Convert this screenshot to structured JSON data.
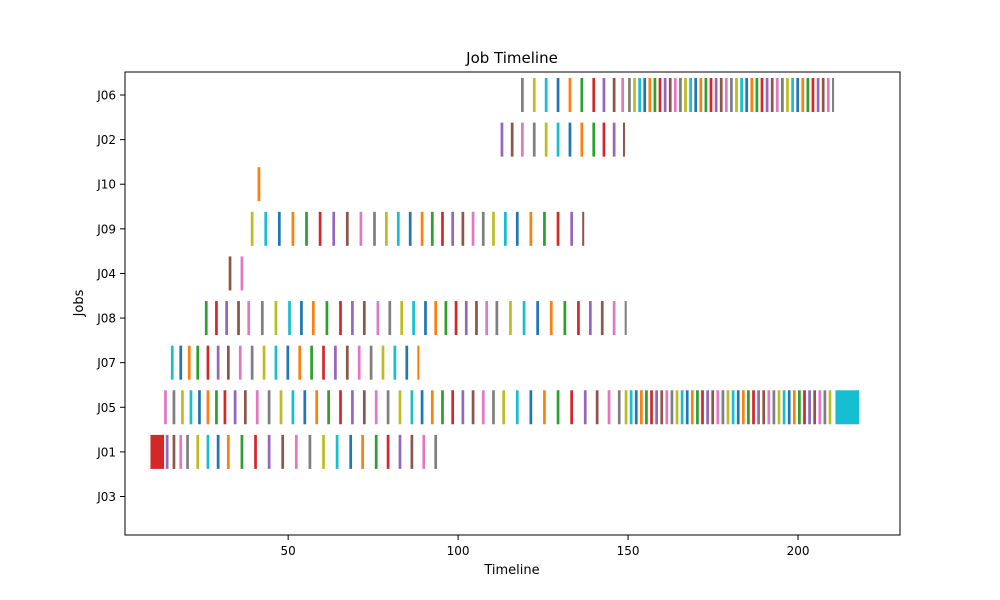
{
  "chart_data": {
    "type": "timeline",
    "title": "Job Timeline",
    "xlabel": "Timeline",
    "ylabel": "Jobs",
    "xlim": [
      2,
      230
    ],
    "xticks": [
      50,
      100,
      150,
      200
    ],
    "jobs": [
      "J03",
      "J01",
      "J05",
      "J07",
      "J08",
      "J04",
      "J09",
      "J10",
      "J02",
      "J06"
    ],
    "grid": false,
    "legend": "none",
    "palette": [
      "#1f77b4",
      "#ff7f0e",
      "#2ca02c",
      "#d62728",
      "#9467bd",
      "#8c564b",
      "#e377c2",
      "#7f7f7f",
      "#bcbd22",
      "#17becf"
    ],
    "segments": {
      "J03": [],
      "J01": [
        [
          9.5,
          4
        ],
        [
          14,
          0.8
        ],
        [
          16,
          0.8
        ],
        [
          18,
          0.8
        ],
        [
          20,
          0.8
        ],
        [
          23,
          0.8
        ],
        [
          26,
          0.8
        ],
        [
          29,
          0.8
        ],
        [
          32,
          0.8
        ],
        [
          36,
          0.8
        ],
        [
          40,
          0.8
        ],
        [
          44,
          0.8
        ],
        [
          48,
          0.8
        ],
        [
          52,
          0.8
        ],
        [
          56,
          0.8
        ],
        [
          60,
          0.8
        ],
        [
          64,
          0.8
        ],
        [
          68,
          0.8
        ],
        [
          71.5,
          0.8
        ],
        [
          75.5,
          0.8
        ],
        [
          79,
          0.8
        ],
        [
          82.5,
          0.8
        ],
        [
          86,
          0.8
        ],
        [
          89.5,
          0.8
        ],
        [
          93,
          0.8
        ]
      ],
      "J05": [
        [
          13.5,
          0.8
        ],
        [
          16,
          0.8
        ],
        [
          18.5,
          0.8
        ],
        [
          21,
          0.8
        ],
        [
          23.5,
          0.8
        ],
        [
          26,
          0.8
        ],
        [
          28.5,
          0.8
        ],
        [
          31,
          0.8
        ],
        [
          34,
          0.8
        ],
        [
          37,
          0.8
        ],
        [
          40.5,
          0.8
        ],
        [
          44,
          0.8
        ],
        [
          47.5,
          0.8
        ],
        [
          51,
          0.8
        ],
        [
          54.5,
          0.8
        ],
        [
          58,
          0.8
        ],
        [
          61.5,
          0.8
        ],
        [
          65,
          0.8
        ],
        [
          68.5,
          0.8
        ],
        [
          72,
          0.8
        ],
        [
          75.5,
          0.8
        ],
        [
          79,
          0.8
        ],
        [
          82.5,
          0.8
        ],
        [
          86,
          0.8
        ],
        [
          89,
          0.8
        ],
        [
          92,
          0.8
        ],
        [
          95,
          0.8
        ],
        [
          98,
          0.8
        ],
        [
          101,
          0.8
        ],
        [
          104,
          0.8
        ],
        [
          107,
          0.8
        ],
        [
          110,
          0.8
        ],
        [
          113,
          0.8
        ],
        [
          117,
          0.8
        ],
        [
          121,
          0.8
        ],
        [
          125,
          0.8
        ],
        [
          129,
          0.8
        ],
        [
          133,
          0.8
        ],
        [
          137,
          0.8
        ],
        [
          140.5,
          0.8
        ],
        [
          144,
          0.8
        ],
        [
          147,
          0.8
        ],
        [
          149,
          0.8
        ],
        [
          150.5,
          0.8
        ],
        [
          152,
          0.8
        ],
        [
          153.5,
          0.8
        ],
        [
          155,
          0.8
        ],
        [
          156.5,
          0.8
        ],
        [
          158,
          0.8
        ],
        [
          159.5,
          0.8
        ],
        [
          161,
          0.8
        ],
        [
          162.5,
          0.8
        ],
        [
          164,
          0.8
        ],
        [
          165.5,
          0.8
        ],
        [
          167,
          0.8
        ],
        [
          168.5,
          0.8
        ],
        [
          170,
          0.8
        ],
        [
          171.5,
          0.8
        ],
        [
          173,
          0.8
        ],
        [
          174.5,
          0.8
        ],
        [
          176,
          0.8
        ],
        [
          177.5,
          0.8
        ],
        [
          179,
          0.8
        ],
        [
          180.5,
          0.8
        ],
        [
          182,
          0.8
        ],
        [
          183.5,
          0.8
        ],
        [
          185,
          0.8
        ],
        [
          186.5,
          0.8
        ],
        [
          188,
          0.8
        ],
        [
          189.5,
          0.8
        ],
        [
          191,
          0.8
        ],
        [
          192.5,
          0.8
        ],
        [
          194,
          0.8
        ],
        [
          195.5,
          0.8
        ],
        [
          197,
          0.8
        ],
        [
          198.5,
          0.8
        ],
        [
          200,
          0.8
        ],
        [
          201.5,
          0.8
        ],
        [
          203,
          0.8
        ],
        [
          204.5,
          0.8
        ],
        [
          206,
          0.8
        ],
        [
          207.5,
          0.8
        ],
        [
          209,
          0.8
        ],
        [
          211,
          7
        ]
      ],
      "J07": [
        [
          15.5,
          0.8
        ],
        [
          18,
          0.8
        ],
        [
          20.5,
          0.8
        ],
        [
          23,
          0.8
        ],
        [
          26,
          0.8
        ],
        [
          29,
          0.8
        ],
        [
          32,
          0.8
        ],
        [
          35.5,
          0.8
        ],
        [
          39,
          0.8
        ],
        [
          42.5,
          0.8
        ],
        [
          46,
          0.8
        ],
        [
          49.5,
          0.8
        ],
        [
          53,
          0.8
        ],
        [
          56.5,
          0.8
        ],
        [
          60,
          0.8
        ],
        [
          63.5,
          0.8
        ],
        [
          67,
          0.8
        ],
        [
          70.5,
          0.8
        ],
        [
          74,
          0.8
        ],
        [
          77.5,
          0.8
        ],
        [
          81,
          0.8
        ],
        [
          84.5,
          0.8
        ],
        [
          88,
          0.6
        ]
      ],
      "J08": [
        [
          25.5,
          0.8
        ],
        [
          28.5,
          0.8
        ],
        [
          31.5,
          0.8
        ],
        [
          35,
          0.8
        ],
        [
          38,
          0.8
        ],
        [
          42,
          0.8
        ],
        [
          46,
          0.8
        ],
        [
          50,
          0.8
        ],
        [
          53.5,
          0.8
        ],
        [
          57,
          0.8
        ],
        [
          61,
          0.8
        ],
        [
          65,
          0.8
        ],
        [
          68.5,
          0.8
        ],
        [
          72,
          0.8
        ],
        [
          76,
          0.8
        ],
        [
          79.5,
          0.8
        ],
        [
          83,
          0.8
        ],
        [
          86.5,
          0.8
        ],
        [
          90,
          0.8
        ],
        [
          93,
          0.8
        ],
        [
          96,
          0.8
        ],
        [
          99,
          0.8
        ],
        [
          102,
          0.8
        ],
        [
          105,
          0.8
        ],
        [
          108,
          0.8
        ],
        [
          111,
          0.8
        ],
        [
          115,
          0.8
        ],
        [
          119,
          0.8
        ],
        [
          123,
          0.8
        ],
        [
          127,
          0.8
        ],
        [
          131,
          0.8
        ],
        [
          135,
          0.8
        ],
        [
          138.5,
          0.8
        ],
        [
          142,
          0.8
        ],
        [
          145.5,
          0.8
        ],
        [
          149,
          0.6
        ]
      ],
      "J04": [
        [
          32.5,
          0.8
        ],
        [
          36,
          0.8
        ]
      ],
      "J09": [
        [
          39,
          0.8
        ],
        [
          43,
          0.8
        ],
        [
          47,
          0.8
        ],
        [
          51,
          0.8
        ],
        [
          55,
          0.8
        ],
        [
          59,
          0.8
        ],
        [
          63,
          0.8
        ],
        [
          67,
          0.8
        ],
        [
          71,
          0.8
        ],
        [
          75,
          0.8
        ],
        [
          78.5,
          0.8
        ],
        [
          82,
          0.8
        ],
        [
          85.5,
          0.8
        ],
        [
          89,
          0.8
        ],
        [
          92,
          0.8
        ],
        [
          95,
          0.8
        ],
        [
          98,
          0.8
        ],
        [
          101,
          0.8
        ],
        [
          104,
          0.8
        ],
        [
          107,
          0.8
        ],
        [
          110,
          0.8
        ],
        [
          113.5,
          0.8
        ],
        [
          117,
          0.8
        ],
        [
          121,
          0.8
        ],
        [
          125,
          0.8
        ],
        [
          129,
          0.8
        ],
        [
          133,
          0.8
        ],
        [
          136.5,
          0.6
        ]
      ],
      "J10": [
        [
          41,
          0.8
        ]
      ],
      "J02": [
        [
          112.5,
          0.8
        ],
        [
          115.5,
          0.8
        ],
        [
          118.5,
          0.8
        ],
        [
          122,
          0.8
        ],
        [
          125.5,
          0.8
        ],
        [
          129,
          0.8
        ],
        [
          132.5,
          0.8
        ],
        [
          136,
          0.8
        ],
        [
          139.5,
          0.8
        ],
        [
          142.5,
          0.8
        ],
        [
          145.5,
          0.8
        ],
        [
          148.5,
          0.6
        ]
      ],
      "J06": [
        [
          118.5,
          0.8
        ],
        [
          122,
          0.8
        ],
        [
          125.5,
          0.8
        ],
        [
          129,
          0.8
        ],
        [
          132.5,
          0.8
        ],
        [
          136,
          0.8
        ],
        [
          139.5,
          0.8
        ],
        [
          142.5,
          0.8
        ],
        [
          145.5,
          0.8
        ],
        [
          148,
          0.8
        ],
        [
          150,
          0.8
        ],
        [
          151.5,
          0.8
        ],
        [
          153,
          0.8
        ],
        [
          154.5,
          0.8
        ],
        [
          156,
          0.8
        ],
        [
          157.5,
          0.8
        ],
        [
          159,
          0.8
        ],
        [
          160.5,
          0.8
        ],
        [
          162,
          0.8
        ],
        [
          163.5,
          0.8
        ],
        [
          165,
          0.8
        ],
        [
          166.5,
          0.8
        ],
        [
          168,
          0.8
        ],
        [
          169.5,
          0.8
        ],
        [
          171,
          0.8
        ],
        [
          172.5,
          0.8
        ],
        [
          174,
          0.8
        ],
        [
          175.5,
          0.8
        ],
        [
          177,
          0.8
        ],
        [
          178.5,
          0.8
        ],
        [
          180,
          0.8
        ],
        [
          181.5,
          0.8
        ],
        [
          183,
          0.8
        ],
        [
          184.5,
          0.8
        ],
        [
          186,
          0.8
        ],
        [
          187.5,
          0.8
        ],
        [
          189,
          0.8
        ],
        [
          190.5,
          0.8
        ],
        [
          192,
          0.8
        ],
        [
          193.5,
          0.8
        ],
        [
          195,
          0.8
        ],
        [
          196.5,
          0.8
        ],
        [
          198,
          0.8
        ],
        [
          199.5,
          0.8
        ],
        [
          201,
          0.8
        ],
        [
          202.5,
          0.8
        ],
        [
          204,
          0.8
        ],
        [
          205.5,
          0.8
        ],
        [
          207,
          0.8
        ],
        [
          208.5,
          0.8
        ],
        [
          210,
          0.6
        ]
      ]
    }
  }
}
